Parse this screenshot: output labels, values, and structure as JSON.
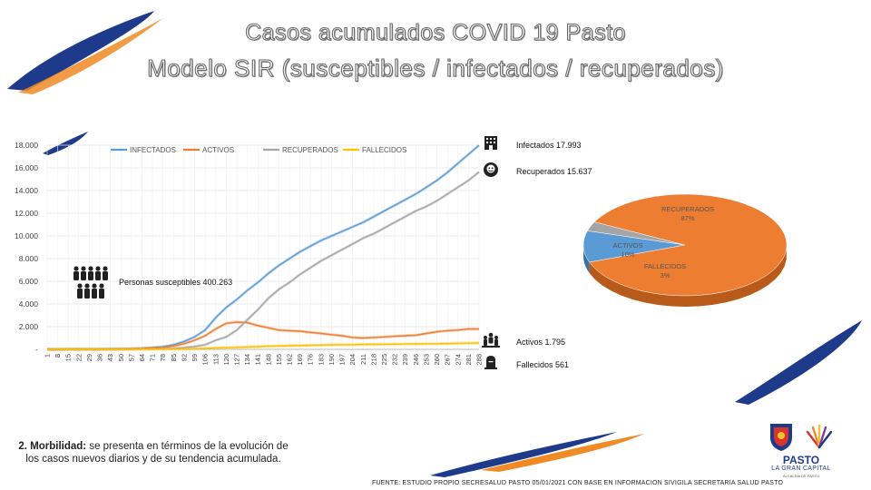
{
  "title_line1": "Casos acumulados COVID 19 Pasto",
  "title_line2": "Modelo SIR (susceptibles / infectados / recuperados)",
  "stats": {
    "infectados": "Infectados 17.993",
    "recuperados": "Recuperados 15.637",
    "susceptibles": "Personas susceptibles 400.263",
    "activos": "Activos 1.795",
    "fallecidos": "Fallecidos 561"
  },
  "morbilidad": {
    "bold": "2. Morbilidad:",
    "text": " se presenta en términos de la evolución de los casos nuevos diarios y de su tendencia acumulada."
  },
  "fuente": "FUENTE: ESTUDIO PROPIO SECRESALUD PASTO 05/01/2021 CON BASE EN INFORMACION SIVIGILA SECRETARIA SALUD PASTO",
  "logo": {
    "name": "PASTO",
    "subtitle": "LA GRAN CAPITAL",
    "small": "ALCALDÍA DE PASTO"
  },
  "colors": {
    "infectados": "#5b9bd5",
    "activos": "#ed7d31",
    "recuperados": "#a5a5a5",
    "fallecidos": "#ffc000",
    "brand_blue": "#1e3a8a",
    "brand_orange": "#f08a24"
  },
  "icons": [
    "hospital-icon",
    "recovered-icon",
    "people-group-icon",
    "active-group-icon",
    "tombstone-icon"
  ],
  "chart_data": [
    {
      "type": "line",
      "title": "",
      "xlabel": "",
      "ylabel": "",
      "ylim": [
        0,
        18000
      ],
      "ytick_labels": [
        "-",
        "2.000",
        "4.000",
        "6.000",
        "8.000",
        "10.000",
        "12.000",
        "14.000",
        "16.000",
        "18.000"
      ],
      "ytick_values": [
        0,
        2000,
        4000,
        6000,
        8000,
        10000,
        12000,
        14000,
        16000,
        18000
      ],
      "x": [
        "1",
        "8",
        "15",
        "22",
        "29",
        "36",
        "43",
        "50",
        "57",
        "64",
        "71",
        "78",
        "85",
        "92",
        "99",
        "106",
        "113",
        "120",
        "127",
        "134",
        "141",
        "148",
        "155",
        "162",
        "169",
        "176",
        "183",
        "190",
        "197",
        "204",
        "211",
        "218",
        "225",
        "232",
        "239",
        "246",
        "253",
        "260",
        "267",
        "274",
        "281",
        "288"
      ],
      "legend_position": "top",
      "grid": true,
      "series": [
        {
          "name": "INFECTADOS",
          "values": [
            0,
            2,
            5,
            10,
            15,
            20,
            30,
            40,
            60,
            100,
            150,
            230,
            400,
            700,
            1100,
            1700,
            2800,
            3700,
            4400,
            5200,
            5900,
            6700,
            7400,
            8000,
            8600,
            9100,
            9600,
            10000,
            10400,
            10800,
            11200,
            11700,
            12200,
            12700,
            13200,
            13700,
            14300,
            14900,
            15600,
            16400,
            17200,
            17993
          ]
        },
        {
          "name": "ACTIVOS",
          "values": [
            0,
            2,
            5,
            10,
            14,
            18,
            25,
            30,
            45,
            80,
            120,
            170,
            300,
            500,
            800,
            1200,
            1800,
            2300,
            2400,
            2350,
            2100,
            1900,
            1700,
            1650,
            1600,
            1500,
            1400,
            1300,
            1200,
            1050,
            1000,
            1050,
            1100,
            1150,
            1200,
            1250,
            1400,
            1550,
            1650,
            1700,
            1800,
            1795
          ]
        },
        {
          "name": "RECUPERADOS",
          "values": [
            0,
            0,
            0,
            0,
            1,
            2,
            4,
            8,
            12,
            15,
            25,
            50,
            80,
            150,
            250,
            400,
            800,
            1100,
            1700,
            2600,
            3500,
            4500,
            5300,
            5900,
            6600,
            7200,
            7800,
            8300,
            8800,
            9300,
            9800,
            10200,
            10700,
            11200,
            11700,
            12200,
            12600,
            13100,
            13700,
            14300,
            14900,
            15637
          ]
        },
        {
          "name": "FALLECIDOS",
          "values": [
            0,
            0,
            0,
            0,
            0,
            0,
            1,
            2,
            3,
            5,
            8,
            12,
            20,
            40,
            60,
            90,
            120,
            150,
            180,
            210,
            240,
            270,
            300,
            320,
            340,
            360,
            380,
            400,
            410,
            420,
            430,
            440,
            450,
            460,
            470,
            480,
            490,
            500,
            515,
            530,
            545,
            561
          ]
        }
      ]
    },
    {
      "type": "pie",
      "title": "",
      "slices": [
        {
          "label": "RECUPERADOS",
          "pct_label": "87%",
          "value": 87
        },
        {
          "label": "ACTIVOS",
          "pct_label": "10%",
          "value": 10
        },
        {
          "label": "FALLECIDOS",
          "pct_label": "3%",
          "value": 3
        }
      ]
    }
  ]
}
